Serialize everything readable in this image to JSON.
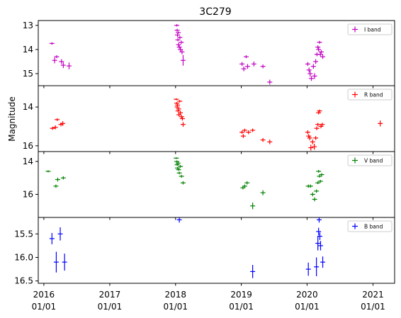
{
  "chart_data": {
    "type": "scatter",
    "title": "3C279",
    "ylabel": "Magnitude",
    "xlabel": "",
    "xlim": [
      "2015-12-01",
      "2021-05-01"
    ],
    "x_ticks": [
      {
        "date": "2016-01-01",
        "label1": "2016",
        "label2": "01/01"
      },
      {
        "date": "2017-01-01",
        "label1": "2017",
        "label2": "01/01"
      },
      {
        "date": "2018-01-01",
        "label1": "2018",
        "label2": "01/01"
      },
      {
        "date": "2019-01-01",
        "label1": "2019",
        "label2": "01/01"
      },
      {
        "date": "2020-01-01",
        "label1": "2020",
        "label2": "01/01"
      },
      {
        "date": "2021-01-01",
        "label1": "2021",
        "label2": "01/01"
      }
    ],
    "panels": [
      {
        "name": "I band",
        "color": "#c000c0",
        "ylim": [
          15.5,
          12.8
        ],
        "yticks": [
          "13",
          "14",
          "15"
        ],
        "points": [
          [
            "2016-02-15",
            13.75,
            0.05
          ],
          [
            "2016-03-01",
            14.45,
            0.12
          ],
          [
            "2016-03-12",
            14.3,
            0.06
          ],
          [
            "2016-04-08",
            14.5,
            0.1
          ],
          [
            "2016-04-18",
            14.65,
            0.12
          ],
          [
            "2016-05-20",
            14.68,
            0.14
          ],
          [
            "2018-01-08",
            13.0,
            0.05
          ],
          [
            "2018-01-10",
            13.2,
            0.06
          ],
          [
            "2018-01-12",
            13.4,
            0.07
          ],
          [
            "2018-01-14",
            13.6,
            0.06
          ],
          [
            "2018-01-16",
            13.3,
            0.05
          ],
          [
            "2018-01-18",
            13.8,
            0.08
          ],
          [
            "2018-01-22",
            13.9,
            0.07
          ],
          [
            "2018-01-25",
            13.5,
            0.06
          ],
          [
            "2018-01-28",
            14.0,
            0.09
          ],
          [
            "2018-02-02",
            13.7,
            0.07
          ],
          [
            "2018-02-06",
            14.1,
            0.1
          ],
          [
            "2018-02-12",
            14.45,
            0.22
          ],
          [
            "2019-01-05",
            14.6,
            0.08
          ],
          [
            "2019-01-15",
            14.8,
            0.1
          ],
          [
            "2019-01-28",
            14.3,
            0.06
          ],
          [
            "2019-02-05",
            14.7,
            0.1
          ],
          [
            "2019-03-12",
            14.6,
            0.1
          ],
          [
            "2019-05-01",
            14.7,
            0.08
          ],
          [
            "2019-06-08",
            15.35,
            0.1
          ],
          [
            "2020-01-05",
            14.6,
            0.08
          ],
          [
            "2020-01-12",
            14.85,
            0.1
          ],
          [
            "2020-01-18",
            15.0,
            0.12
          ],
          [
            "2020-01-25",
            15.2,
            0.1
          ],
          [
            "2020-02-05",
            14.7,
            0.1
          ],
          [
            "2020-02-12",
            15.1,
            0.12
          ],
          [
            "2020-02-18",
            14.5,
            0.1
          ],
          [
            "2020-02-25",
            14.2,
            0.08
          ],
          [
            "2020-03-01",
            13.9,
            0.07
          ],
          [
            "2020-03-05",
            14.0,
            0.08
          ],
          [
            "2020-03-10",
            13.7,
            0.06
          ],
          [
            "2020-03-15",
            14.2,
            0.08
          ],
          [
            "2020-03-20",
            14.1,
            0.07
          ],
          [
            "2020-03-28",
            14.3,
            0.09
          ]
        ]
      },
      {
        "name": "R band",
        "color": "#ff0000",
        "ylim": [
          16.3,
          12.9
        ],
        "yticks": [
          "14",
          "16"
        ],
        "points": [
          [
            "2016-02-18",
            15.1,
            0.08
          ],
          [
            "2016-03-05",
            15.05,
            0.1
          ],
          [
            "2016-03-15",
            14.65,
            0.07
          ],
          [
            "2016-04-05",
            14.9,
            0.1
          ],
          [
            "2016-04-15",
            14.85,
            0.12
          ],
          [
            "2018-01-05",
            13.6,
            0.05
          ],
          [
            "2018-01-08",
            13.8,
            0.06
          ],
          [
            "2018-01-10",
            14.0,
            0.07
          ],
          [
            "2018-01-12",
            13.9,
            0.06
          ],
          [
            "2018-01-15",
            14.2,
            0.07
          ],
          [
            "2018-01-18",
            14.1,
            0.07
          ],
          [
            "2018-01-20",
            14.4,
            0.08
          ],
          [
            "2018-01-24",
            13.7,
            0.06
          ],
          [
            "2018-01-28",
            14.3,
            0.08
          ],
          [
            "2018-02-03",
            14.5,
            0.09
          ],
          [
            "2018-02-08",
            14.6,
            0.1
          ],
          [
            "2018-02-12",
            14.9,
            0.12
          ],
          [
            "2019-01-05",
            15.3,
            0.08
          ],
          [
            "2019-01-12",
            15.5,
            0.1
          ],
          [
            "2019-01-20",
            15.2,
            0.08
          ],
          [
            "2019-02-10",
            15.3,
            0.1
          ],
          [
            "2019-03-05",
            15.2,
            0.09
          ],
          [
            "2019-05-01",
            15.7,
            0.1
          ],
          [
            "2019-06-08",
            15.8,
            0.12
          ],
          [
            "2020-01-05",
            15.3,
            0.1
          ],
          [
            "2020-01-10",
            15.5,
            0.1
          ],
          [
            "2020-01-16",
            15.6,
            0.12
          ],
          [
            "2020-01-22",
            16.1,
            0.15
          ],
          [
            "2020-02-01",
            15.8,
            0.12
          ],
          [
            "2020-02-10",
            16.05,
            0.15
          ],
          [
            "2020-02-18",
            15.6,
            0.1
          ],
          [
            "2020-02-24",
            15.1,
            0.1
          ],
          [
            "2020-03-01",
            14.9,
            0.08
          ],
          [
            "2020-03-05",
            14.3,
            0.08
          ],
          [
            "2020-03-10",
            14.2,
            0.07
          ],
          [
            "2020-03-18",
            15.0,
            0.1
          ],
          [
            "2020-03-25",
            14.9,
            0.09
          ],
          [
            "2021-02-10",
            14.85,
            0.15
          ]
        ]
      },
      {
        "name": "V band",
        "color": "#008000",
        "ylim": [
          17.4,
          13.4
        ],
        "yticks": [
          "14",
          "16"
        ],
        "points": [
          [
            "2016-01-25",
            14.6,
            0.06
          ],
          [
            "2016-03-08",
            15.5,
            0.1
          ],
          [
            "2016-03-18",
            15.1,
            0.12
          ],
          [
            "2016-04-18",
            15.0,
            0.1
          ],
          [
            "2018-01-05",
            13.8,
            0.05
          ],
          [
            "2018-01-08",
            14.0,
            0.06
          ],
          [
            "2018-01-10",
            14.2,
            0.07
          ],
          [
            "2018-01-12",
            14.4,
            0.06
          ],
          [
            "2018-01-15",
            14.1,
            0.07
          ],
          [
            "2018-01-18",
            14.5,
            0.07
          ],
          [
            "2018-01-22",
            14.7,
            0.08
          ],
          [
            "2018-01-28",
            14.3,
            0.08
          ],
          [
            "2018-02-03",
            14.9,
            0.09
          ],
          [
            "2018-02-12",
            15.3,
            0.1
          ],
          [
            "2019-01-10",
            15.6,
            0.1
          ],
          [
            "2019-01-20",
            15.5,
            0.1
          ],
          [
            "2019-02-02",
            15.3,
            0.1
          ],
          [
            "2019-03-05",
            16.7,
            0.2
          ],
          [
            "2019-05-01",
            15.9,
            0.15
          ],
          [
            "2020-01-08",
            15.5,
            0.1
          ],
          [
            "2020-01-20",
            15.5,
            0.1
          ],
          [
            "2020-02-01",
            16.0,
            0.12
          ],
          [
            "2020-02-12",
            16.3,
            0.12
          ],
          [
            "2020-02-22",
            15.8,
            0.1
          ],
          [
            "2020-03-01",
            15.3,
            0.08
          ],
          [
            "2020-03-05",
            14.6,
            0.08
          ],
          [
            "2020-03-10",
            14.9,
            0.08
          ],
          [
            "2020-03-15",
            15.2,
            0.08
          ],
          [
            "2020-03-22",
            14.8,
            0.09
          ]
        ]
      },
      {
        "name": "B band",
        "color": "#0000ff",
        "ylim": [
          16.55,
          15.15
        ],
        "yticks": [
          "15.5",
          "16.0",
          "16.5"
        ],
        "points": [
          [
            "2016-02-15",
            15.6,
            0.12
          ],
          [
            "2016-03-10",
            16.1,
            0.22
          ],
          [
            "2016-04-01",
            15.5,
            0.14
          ],
          [
            "2016-04-25",
            16.1,
            0.18
          ],
          [
            "2018-01-22",
            15.2,
            0.06
          ],
          [
            "2019-03-05",
            16.3,
            0.14
          ],
          [
            "2020-01-08",
            16.25,
            0.14
          ],
          [
            "2020-02-22",
            16.2,
            0.2
          ],
          [
            "2020-03-01",
            15.7,
            0.15
          ],
          [
            "2020-03-05",
            15.45,
            0.08
          ],
          [
            "2020-03-08",
            15.2,
            0.06
          ],
          [
            "2020-03-12",
            15.55,
            0.08
          ],
          [
            "2020-03-16",
            15.75,
            0.1
          ],
          [
            "2020-03-28",
            16.1,
            0.12
          ]
        ]
      }
    ]
  }
}
